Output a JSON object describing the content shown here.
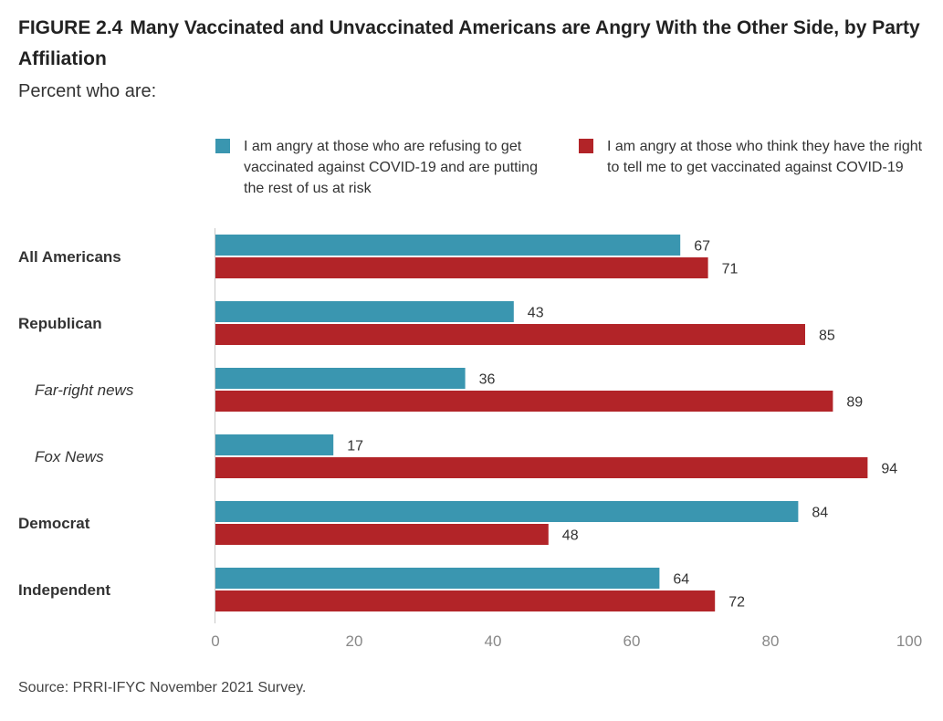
{
  "header": {
    "figure_label": "FIGURE 2.4",
    "title": "Many Vaccinated and Unvaccinated Americans are Angry With the Other Side, by Party Affiliation",
    "subtitle": "Percent who are:"
  },
  "footer": {
    "source": "Source: PRRI-IFYC November 2021 Survey."
  },
  "chart_data": {
    "type": "bar",
    "orientation": "horizontal",
    "categories": [
      "All Americans",
      "Republican",
      "Far-right news",
      "Fox News",
      "Democrat",
      "Independent"
    ],
    "category_styles": [
      "bold",
      "bold",
      "italic",
      "italic",
      "bold",
      "bold"
    ],
    "series": [
      {
        "name": "I am angry at those who are refusing to get vaccinated against COVID-19 and are putting the rest of us at risk",
        "color": "#3a96b0",
        "values": [
          67,
          43,
          36,
          17,
          84,
          64
        ]
      },
      {
        "name": "I am angry at those who think they have the right to tell me to get vaccinated against COVID-19",
        "color": "#b22428",
        "values": [
          71,
          85,
          89,
          94,
          48,
          72
        ]
      }
    ],
    "xlim": [
      0,
      100
    ],
    "xticks": [
      0,
      20,
      40,
      60,
      80,
      100
    ],
    "legend_position": "top",
    "grid": false
  }
}
